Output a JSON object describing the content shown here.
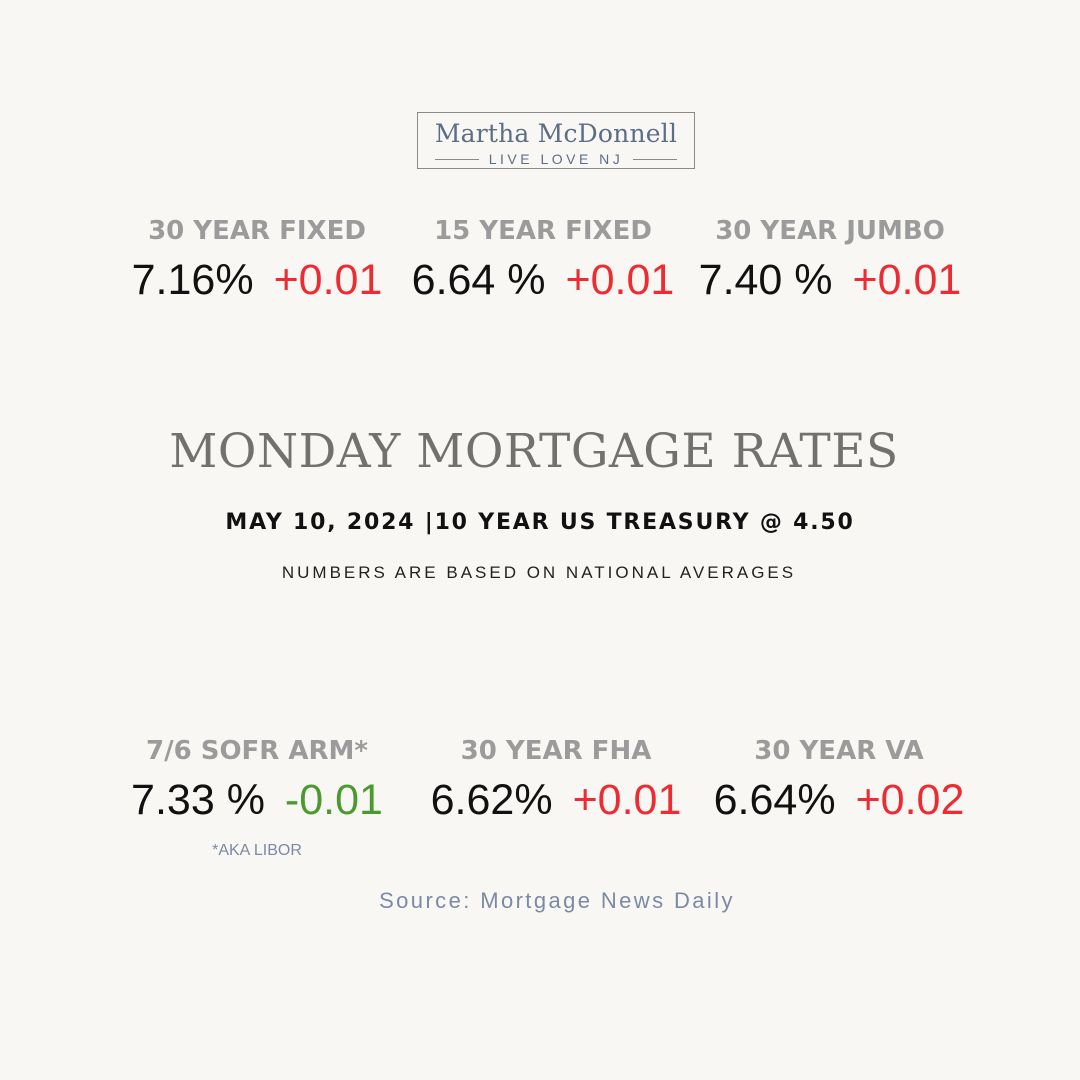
{
  "logo": {
    "name": "Martha McDonnell",
    "tagline": "LIVE LOVE NJ"
  },
  "rates_top": [
    {
      "label": "30 YEAR FIXED",
      "value": "7.16%",
      "change": "+0.01",
      "direction": "up"
    },
    {
      "label": "15 YEAR FIXED",
      "value": "6.64 %",
      "change": "+0.01",
      "direction": "up"
    },
    {
      "label": "30 YEAR JUMBO",
      "value": "7.40 %",
      "change": "+0.01",
      "direction": "up"
    }
  ],
  "title": "MONDAY MORTGAGE RATES",
  "date_line": "MAY 10, 2024 |10 YEAR US TREASURY @ 4.50",
  "sub_line": "NUMBERS ARE BASED ON NATIONAL AVERAGES",
  "rates_bottom": [
    {
      "label": "7/6 SOFR ARM*",
      "value": "7.33 %",
      "change": "-0.01",
      "direction": "down"
    },
    {
      "label": "30 YEAR FHA",
      "value": "6.62%",
      "change": "+0.01",
      "direction": "up"
    },
    {
      "label": "30 YEAR VA",
      "value": "6.64%",
      "change": "+0.02",
      "direction": "up"
    }
  ],
  "footnote": "*AKA LIBOR",
  "source": "Source: Mortgage News Daily",
  "colors": {
    "background": "#f9f7f4",
    "label_gray": "#9b9b9b",
    "increase_red": "#ec2b33",
    "decrease_green": "#4b9a30",
    "accent_blue_gray": "#7b8aa4"
  }
}
